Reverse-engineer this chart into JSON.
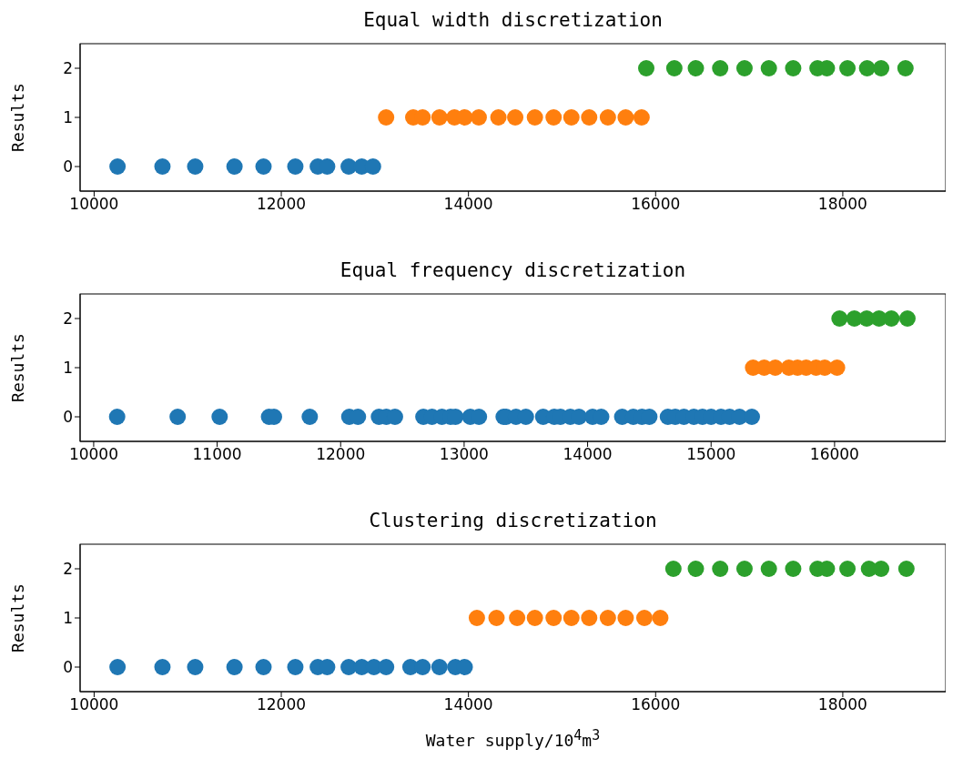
{
  "chart_data": [
    {
      "type": "scatter",
      "title": "Equal width discretization",
      "ylabel": "Results",
      "xlim": [
        9850,
        19100
      ],
      "xticks": [
        10000,
        12000,
        14000,
        16000,
        18000
      ],
      "ylim": [
        -0.5,
        2.5
      ],
      "yticks": [
        0,
        1,
        2
      ],
      "grid": false,
      "marker": "circle",
      "series": [
        {
          "color": "#1f77b4",
          "x": [
            10250,
            10730,
            11080,
            11500,
            11810,
            12150,
            12390,
            12490,
            12720,
            12860,
            12980
          ],
          "values": [
            0,
            0,
            0,
            0,
            0,
            0,
            0,
            0,
            0,
            0,
            0
          ]
        },
        {
          "color": "#ff7f0e",
          "x": [
            13120,
            13410,
            13510,
            13690,
            13850,
            13960,
            14110,
            14320,
            14500,
            14710,
            14910,
            15100,
            15290,
            15490,
            15680,
            15850
          ],
          "values": [
            1,
            1,
            1,
            1,
            1,
            1,
            1,
            1,
            1,
            1,
            1,
            1,
            1,
            1,
            1,
            1
          ]
        },
        {
          "color": "#2ca02c",
          "x": [
            15900,
            16200,
            16430,
            16690,
            16950,
            17210,
            17470,
            17730,
            17830,
            18050,
            18260,
            18410,
            18670
          ],
          "values": [
            2,
            2,
            2,
            2,
            2,
            2,
            2,
            2,
            2,
            2,
            2,
            2,
            2
          ]
        }
      ]
    },
    {
      "type": "scatter",
      "title": "Equal frequency discretization",
      "ylabel": "Results",
      "xlim": [
        9890,
        16900
      ],
      "xticks": [
        10000,
        11000,
        12000,
        13000,
        14000,
        15000,
        16000
      ],
      "ylim": [
        -0.5,
        2.5
      ],
      "yticks": [
        0,
        1,
        2
      ],
      "grid": false,
      "marker": "circle",
      "series": [
        {
          "color": "#1f77b4",
          "x": [
            10190,
            10680,
            11020,
            11420,
            11460,
            11750,
            12070,
            12140,
            12310,
            12370,
            12440,
            12670,
            12740,
            12820,
            12890,
            12930,
            13050,
            13120,
            13320,
            13340,
            13420,
            13500,
            13640,
            13730,
            13780,
            13860,
            13930,
            14040,
            14110,
            14280,
            14370,
            14440,
            14500,
            14650,
            14710,
            14780,
            14860,
            14930,
            15000,
            15080,
            15150,
            15230,
            15330
          ],
          "values": [
            0,
            0,
            0,
            0,
            0,
            0,
            0,
            0,
            0,
            0,
            0,
            0,
            0,
            0,
            0,
            0,
            0,
            0,
            0,
            0,
            0,
            0,
            0,
            0,
            0,
            0,
            0,
            0,
            0,
            0,
            0,
            0,
            0,
            0,
            0,
            0,
            0,
            0,
            0,
            0,
            0,
            0,
            0
          ]
        },
        {
          "color": "#ff7f0e",
          "x": [
            15340,
            15430,
            15520,
            15630,
            15700,
            15770,
            15850,
            15920,
            16020
          ],
          "values": [
            1,
            1,
            1,
            1,
            1,
            1,
            1,
            1,
            1
          ]
        },
        {
          "color": "#2ca02c",
          "x": [
            16040,
            16160,
            16260,
            16360,
            16460,
            16590
          ],
          "values": [
            2,
            2,
            2,
            2,
            2,
            2
          ]
        }
      ]
    },
    {
      "type": "scatter",
      "title": "Clustering discretization",
      "ylabel": "Results",
      "xlabel": "Water supply/10$^{4}$m$^{3}$",
      "xlim": [
        9850,
        19100
      ],
      "xticks": [
        10000,
        12000,
        14000,
        16000,
        18000
      ],
      "ylim": [
        -0.5,
        2.5
      ],
      "yticks": [
        0,
        1,
        2
      ],
      "grid": false,
      "marker": "circle",
      "series": [
        {
          "color": "#1f77b4",
          "x": [
            10250,
            10730,
            11080,
            11500,
            11810,
            12150,
            12390,
            12490,
            12720,
            12860,
            12990,
            13120,
            13380,
            13510,
            13690,
            13860,
            13960
          ],
          "values": [
            0,
            0,
            0,
            0,
            0,
            0,
            0,
            0,
            0,
            0,
            0,
            0,
            0,
            0,
            0,
            0,
            0
          ]
        },
        {
          "color": "#ff7f0e",
          "x": [
            14090,
            14300,
            14520,
            14710,
            14910,
            15100,
            15290,
            15490,
            15680,
            15880,
            16050
          ],
          "values": [
            1,
            1,
            1,
            1,
            1,
            1,
            1,
            1,
            1,
            1,
            1
          ]
        },
        {
          "color": "#2ca02c",
          "x": [
            16190,
            16430,
            16690,
            16950,
            17210,
            17470,
            17730,
            17830,
            18050,
            18280,
            18410,
            18680
          ],
          "values": [
            2,
            2,
            2,
            2,
            2,
            2,
            2,
            2,
            2,
            2,
            2,
            2
          ]
        }
      ]
    }
  ]
}
